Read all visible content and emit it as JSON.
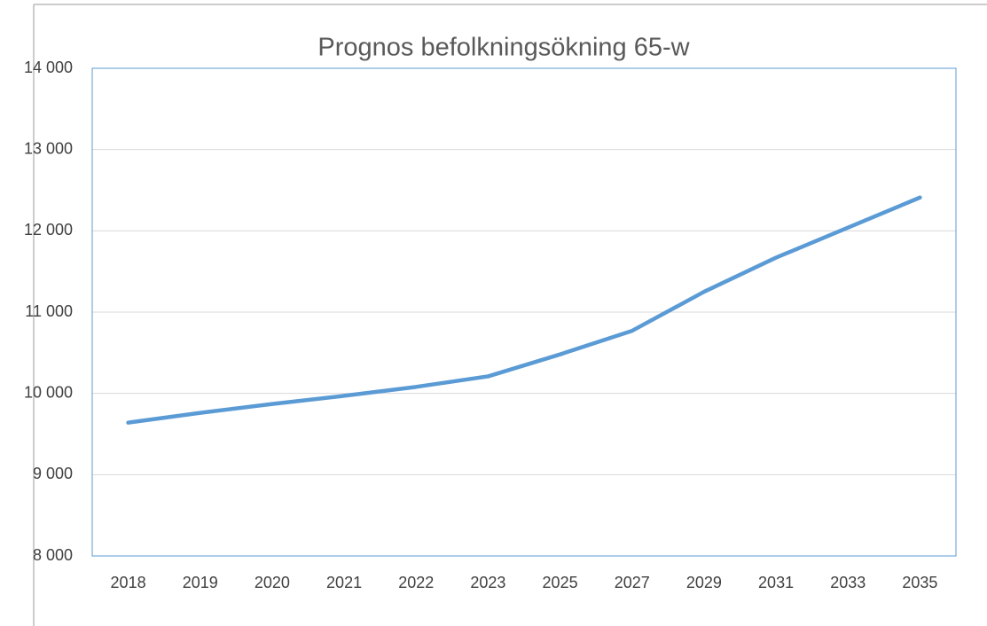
{
  "chart_data": {
    "type": "line",
    "title": "Prognos befolkningsökning 65-w",
    "categories": [
      "2018",
      "2019",
      "2020",
      "2021",
      "2022",
      "2023",
      "2025",
      "2027",
      "2029",
      "2031",
      "2033",
      "2035"
    ],
    "series": [
      {
        "name": "65-w",
        "color": "#5b9bd5",
        "values": [
          9640,
          9760,
          9870,
          9970,
          10080,
          10210,
          10480,
          10770,
          11250,
          11670,
          12040,
          12410
        ]
      }
    ],
    "ylim": [
      8000,
      14000
    ],
    "yticks": [
      {
        "value": 8000,
        "label": "8 000"
      },
      {
        "value": 9000,
        "label": "9 000"
      },
      {
        "value": 10000,
        "label": "10 000"
      },
      {
        "value": 11000,
        "label": "11 000"
      },
      {
        "value": 12000,
        "label": "12 000"
      },
      {
        "value": 13000,
        "label": "13 000"
      },
      {
        "value": 14000,
        "label": "14 000"
      }
    ],
    "grid": true
  }
}
